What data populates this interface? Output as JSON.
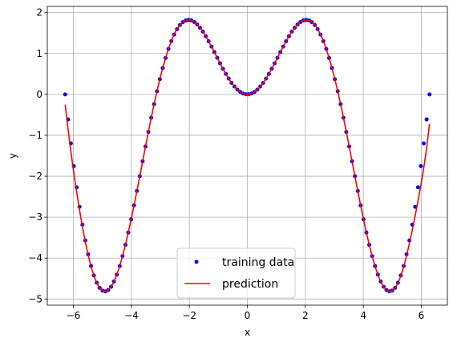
{
  "chart_data": {
    "type": "line",
    "title": "",
    "xlabel": "x",
    "ylabel": "y",
    "xlim": [
      -6.9,
      6.9
    ],
    "ylim": [
      -5.15,
      2.15
    ],
    "xticks": [
      -6,
      -4,
      -2,
      0,
      2,
      4,
      6
    ],
    "yticks": [
      -5,
      -4,
      -3,
      -2,
      -1,
      0,
      1,
      2
    ],
    "grid": true,
    "legend_position": "lower-center",
    "series": [
      {
        "name": "training data",
        "kind": "scatter",
        "color": "#0000ff",
        "x_range": [
          -6.2832,
          6.2832
        ],
        "num_points": 128,
        "function": "x*sin(x)"
      },
      {
        "name": "prediction",
        "kind": "line",
        "color": "#ff0000",
        "x_range": [
          -6.2832,
          6.2832
        ],
        "fit": "approximately x*sin(x), with ends deviating: y(-6.28)=-0.25, y(6.28)=-0.72"
      }
    ]
  }
}
